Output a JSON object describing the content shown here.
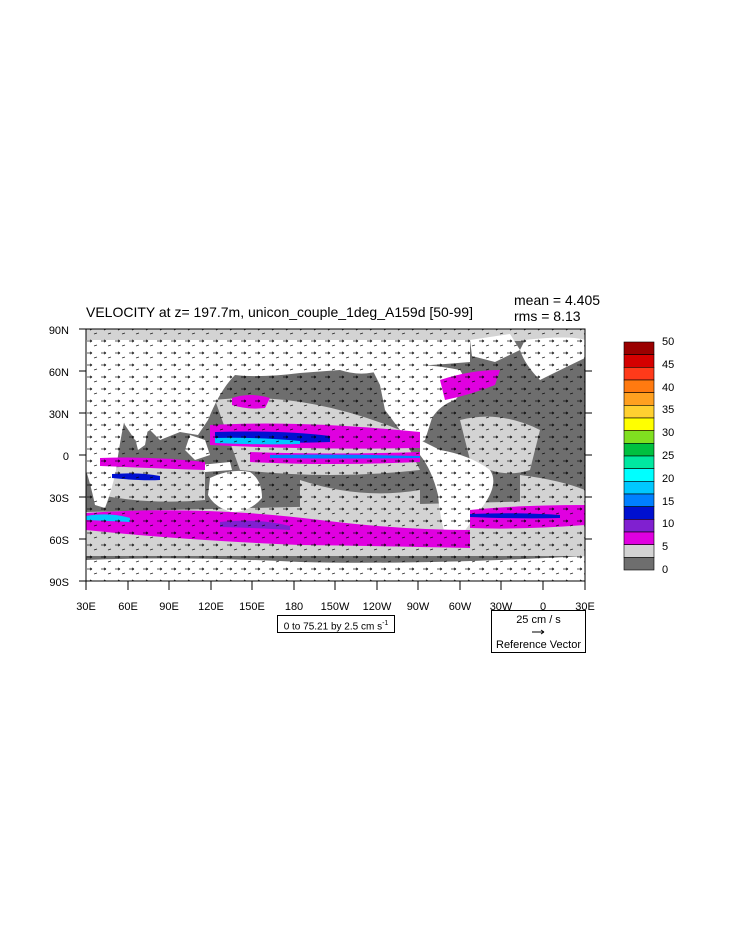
{
  "title": "VELOCITY at z= 197.7m, unicon_couple_1deg_A159d [50-99]",
  "stats": {
    "mean": "mean = 4.405",
    "rms": "rms = 8.13"
  },
  "lat_labels": [
    "90N",
    "60N",
    "30N",
    "0",
    "30S",
    "60S",
    "90S"
  ],
  "lon_labels": [
    "30E",
    "60E",
    "90E",
    "120E",
    "150E",
    "180",
    "150W",
    "120W",
    "90W",
    "60W",
    "30W",
    "0",
    "30E"
  ],
  "contour_info": "0 to 75.21 by 2.5 cm s",
  "contour_info_sup": "-1",
  "reference_vector": {
    "magnitude": "25 cm / s",
    "label": "Reference Vector"
  },
  "colorbar": {
    "labels": [
      "50",
      "45",
      "40",
      "35",
      "30",
      "25",
      "20",
      "15",
      "10",
      "5",
      "0"
    ],
    "colors": [
      "#9a0000",
      "#d40000",
      "#ff3a1a",
      "#ff7a10",
      "#ffa020",
      "#ffd030",
      "#ffff00",
      "#80e020",
      "#00c040",
      "#00e8a0",
      "#00ffff",
      "#00c8ff",
      "#0080ff",
      "#0010d0",
      "#8020d0",
      "#e000e0",
      "#d3d3d3",
      "#6e6e6e"
    ]
  },
  "map_colors": {
    "land": "#ffffff",
    "low": "#6e6e6e",
    "light": "#d3d3d3",
    "magenta": "#e000e0",
    "purple": "#8020d0",
    "blue": "#0010d0",
    "cyan": "#00c8ff"
  }
}
